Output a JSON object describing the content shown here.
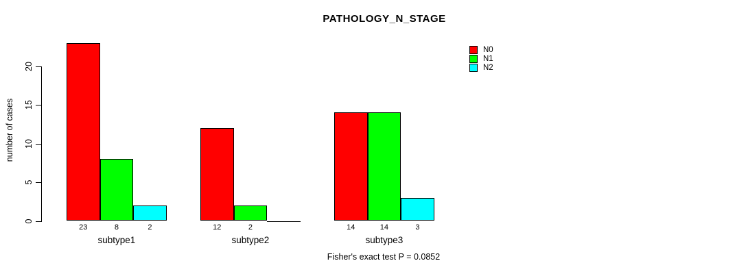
{
  "chart_data": {
    "type": "bar",
    "title": "PATHOLOGY_N_STAGE",
    "xlabel": "",
    "ylabel": "number of cases",
    "ylim": [
      0,
      20
    ],
    "yticks": [
      0,
      5,
      10,
      15,
      20
    ],
    "grid": false,
    "legend_position": "top-right",
    "categories": [
      "subtype1",
      "subtype2",
      "subtype3"
    ],
    "series": [
      {
        "name": "N0",
        "color": "#ff0000",
        "values": [
          23,
          12,
          14
        ]
      },
      {
        "name": "N1",
        "color": "#00ff00",
        "values": [
          8,
          2,
          14
        ]
      },
      {
        "name": "N2",
        "color": "#00ffff",
        "values": [
          2,
          0,
          3
        ]
      }
    ],
    "show_bar_value_labels": true,
    "annotation": "Fisher's exact test P = 0.0852"
  },
  "colors": {
    "background": "#ffffff",
    "axis": "#000000",
    "text": "#000000"
  }
}
